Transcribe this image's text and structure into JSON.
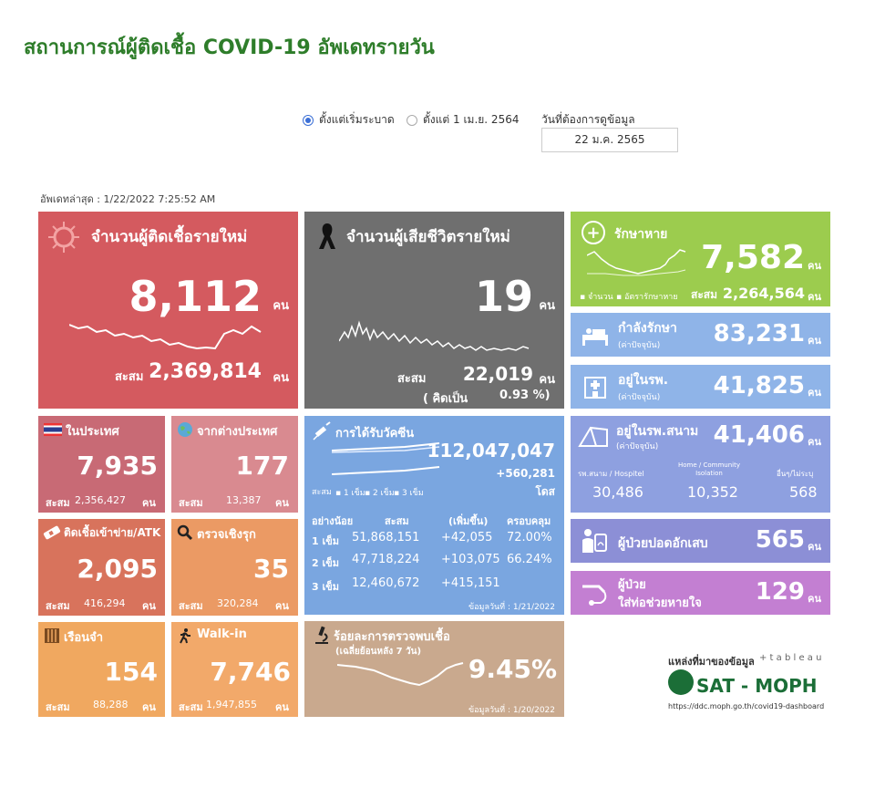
{
  "title": "สถานการณ์ผู้ติดเชื้อ COVID-19 อัพเดทรายวัน",
  "controls": {
    "radio_all": "ตั้งแต่เริ่มระบาด",
    "radio_since": "ตั้งแต่ 1 เม.ย. 2564",
    "date_label": "วันที่ต้องการดูข้อมูล",
    "date_value": "22 ม.ค. 2565"
  },
  "updated": "อัพเดทล่าสุด : 1/22/2022 7:25:52 AM",
  "new_cases": {
    "label": "จำนวนผู้ติดเชื้อรายใหม่",
    "value": "8,112",
    "unit": "คน",
    "total_label": "สะสม",
    "total": "2,369,814",
    "total_unit": "คน"
  },
  "new_deaths": {
    "label": "จำนวนผู้เสียชีวิตรายใหม่",
    "value": "19",
    "unit": "คน",
    "total_label": "สะสม",
    "total": "22,019",
    "total_unit": "คน",
    "pct_label": "( คิดเป็น",
    "pct": "0.93 %)"
  },
  "recovered": {
    "label": "รักษาหาย",
    "value": "7,582",
    "unit": "คน",
    "legend1": "จำนวน",
    "legend2": "อัตรารักษาหาย",
    "total_label": "สะสม",
    "total": "2,264,564",
    "total_unit": "คน"
  },
  "treating": {
    "label": "กำลังรักษา",
    "sub": "(ค่าปัจจุบัน)",
    "value": "83,231",
    "unit": "คน"
  },
  "hospital": {
    "label": "อยู่ในรพ.",
    "sub": "(ค่าปัจจุบัน)",
    "value": "41,825",
    "unit": "คน"
  },
  "domestic": {
    "label": "ในประเทศ",
    "value": "7,935",
    "total_label": "สะสม",
    "total": "2,356,427",
    "total_unit": "คน"
  },
  "abroad": {
    "label": "จากต่างประเทศ",
    "value": "177",
    "total_label": "สะสม",
    "total": "13,387",
    "total_unit": "คน"
  },
  "atk": {
    "label": "ติดเชื้อเข้าข่าย/ATK",
    "value": "2,095",
    "total_label": "สะสม",
    "total": "416,294",
    "total_unit": "คน"
  },
  "proactive": {
    "label": "ตรวจเชิงรุก",
    "value": "35",
    "total_label": "สะสม",
    "total": "320,284",
    "total_unit": "คน"
  },
  "prison": {
    "label": "เรือนจำ",
    "value": "154",
    "total_label": "สะสม",
    "total": "88,288",
    "total_unit": "คน"
  },
  "walkin": {
    "label": "Walk-in",
    "value": "7,746",
    "total_label": "สะสม",
    "total": "1,947,855",
    "total_unit": "คน"
  },
  "vaccine": {
    "label": "การได้รับวัคซีน",
    "total": "112,047,047",
    "added": "+560,281",
    "unit": "โดส",
    "legend_label": "สะสม",
    "legend": [
      "1 เข็ม",
      "2 เข็ม",
      "3 เข็ม"
    ],
    "headers": [
      "อย่างน้อย",
      "สะสม",
      "(เพิ่มขึ้น)",
      "ครอบคลุม"
    ],
    "rows": [
      [
        "1 เข็ม",
        "51,868,151",
        "+42,055",
        "72.00%"
      ],
      [
        "2 เข็ม",
        "47,718,224",
        "+103,075",
        "66.24%"
      ],
      [
        "3 เข็ม",
        "12,460,672",
        "+415,151",
        ""
      ]
    ],
    "footnote": "ข้อมูลวันที่ : 1/21/2022"
  },
  "field_hospital": {
    "label": "อยู่ในรพ.สนาม",
    "sub": "(ค่าปัจจุบัน)",
    "value": "41,406",
    "unit": "คน",
    "cols": [
      {
        "label": "รพ.สนาม / Hospitel",
        "value": "30,486"
      },
      {
        "label": "Home / Community Isolation",
        "value": "10,352"
      },
      {
        "label": "อื่นๆ/ไม่ระบุ",
        "value": "568"
      }
    ]
  },
  "pneumonia": {
    "label": "ผู้ป่วยปอดอักเสบ",
    "value": "565",
    "unit": "คน"
  },
  "ventilator": {
    "label1": "ผู้ป่วย",
    "label2": "ใส่ท่อช่วยหายใจ",
    "value": "129",
    "unit": "คน"
  },
  "positivity": {
    "label": "ร้อยละการตรวจพบเชื้อ",
    "sub": "(เฉลี่ยย้อนหลัง 7 วัน)",
    "value": "9.45%",
    "footnote": "ข้อมูลวันที่ : 1/20/2022"
  },
  "source": {
    "label": "แหล่งที่มาของข้อมูล",
    "tableau": "+ t a b l e a u",
    "org": "SAT - MOPH",
    "url": "https://ddc.moph.go.th/covid19-dashboard"
  },
  "colors": {
    "title": "#2e7d2a",
    "red": "#d45a5f",
    "gray": "#6f6f6f",
    "green": "#9ccc4e",
    "blue": "#8fb4e8",
    "purple": "#8c8fd6",
    "pink": "#c37fd2",
    "orange": "#f2a96a",
    "tan": "#c9a98e"
  }
}
